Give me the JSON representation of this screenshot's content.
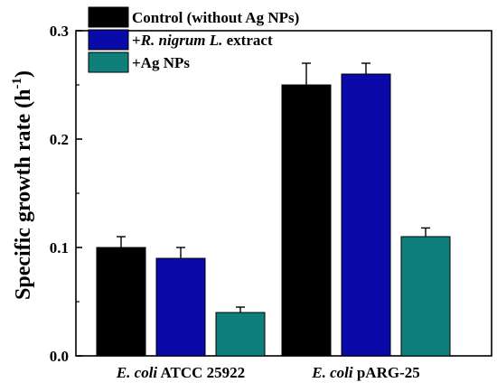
{
  "chart_data": {
    "type": "bar",
    "categories": [
      {
        "italic": "E. coli",
        "rest": " ATCC 25922"
      },
      {
        "italic": "E. coli",
        "rest": " pARG-25"
      }
    ],
    "ylabel": {
      "main": "Specific growth rate (h",
      "sup": "-1",
      "close": ")"
    },
    "ylim": [
      0.0,
      0.3
    ],
    "yticks": [
      "0.0",
      "0.1",
      "0.2",
      "0.3"
    ],
    "grid": false,
    "legend_position": "top-left",
    "series": [
      {
        "name_parts": [
          {
            "text": "Control (without Ag NPs)",
            "italic": false
          }
        ],
        "color": "#000000",
        "values": [
          0.1,
          0.25
        ],
        "errors": [
          0.01,
          0.02
        ]
      },
      {
        "name_parts": [
          {
            "text": "+",
            "italic": false
          },
          {
            "text": "R. nigrum L.",
            "italic": true
          },
          {
            "text": " extract",
            "italic": false
          }
        ],
        "color": "#0a0aa8",
        "values": [
          0.09,
          0.26
        ],
        "errors": [
          0.01,
          0.01
        ]
      },
      {
        "name_parts": [
          {
            "text": "+Ag NPs",
            "italic": false
          }
        ],
        "color": "#0f7f7b",
        "values": [
          0.04,
          0.11
        ],
        "errors": [
          0.005,
          0.008
        ]
      }
    ]
  }
}
